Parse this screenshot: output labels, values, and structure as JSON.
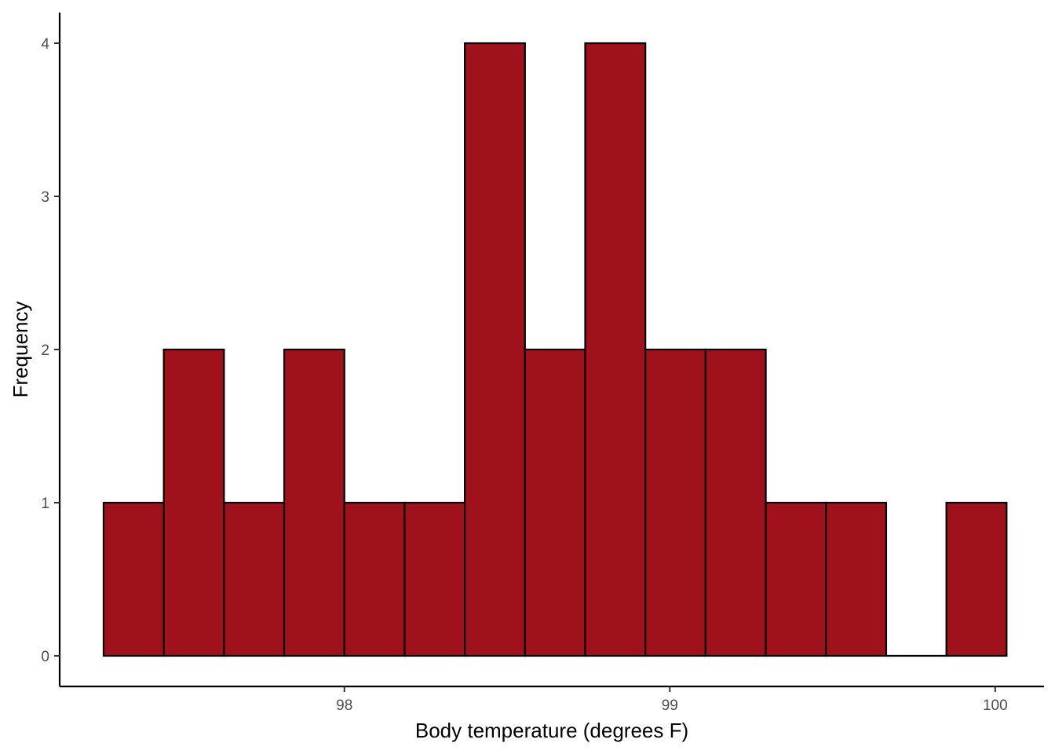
{
  "chart_data": {
    "type": "bar",
    "subtype": "histogram",
    "title": "",
    "xlabel": "Body temperature (degrees F)",
    "ylabel": "Frequency",
    "bar_color": "#A0121B",
    "bar_outline": "#000000",
    "grid": false,
    "xlim": [
      97.125,
      100.15
    ],
    "ylim": [
      -0.2,
      4.2
    ],
    "x_ticks": [
      98,
      99,
      100
    ],
    "y_ticks": [
      0,
      1,
      2,
      3,
      4
    ],
    "bins": [
      {
        "x0": 97.26,
        "x1": 97.445,
        "count": 1
      },
      {
        "x0": 97.445,
        "x1": 97.63,
        "count": 2
      },
      {
        "x0": 97.63,
        "x1": 97.815,
        "count": 1
      },
      {
        "x0": 97.815,
        "x1": 98.0,
        "count": 2
      },
      {
        "x0": 98.0,
        "x1": 98.185,
        "count": 1
      },
      {
        "x0": 98.185,
        "x1": 98.37,
        "count": 1
      },
      {
        "x0": 98.37,
        "x1": 98.555,
        "count": 4
      },
      {
        "x0": 98.555,
        "x1": 98.74,
        "count": 2
      },
      {
        "x0": 98.74,
        "x1": 98.925,
        "count": 4
      },
      {
        "x0": 98.925,
        "x1": 99.11,
        "count": 2
      },
      {
        "x0": 99.11,
        "x1": 99.295,
        "count": 2
      },
      {
        "x0": 99.295,
        "x1": 99.48,
        "count": 1
      },
      {
        "x0": 99.48,
        "x1": 99.665,
        "count": 1
      },
      {
        "x0": 99.665,
        "x1": 99.85,
        "count": 0
      },
      {
        "x0": 99.85,
        "x1": 100.035,
        "count": 1
      }
    ]
  }
}
